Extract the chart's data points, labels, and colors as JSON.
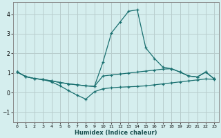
{
  "xlabel": "Humidex (Indice chaleur)",
  "background_color": "#d5eeee",
  "grid_color": "#b8cccc",
  "line_color": "#1a7070",
  "xlim": [
    -0.5,
    23.5
  ],
  "ylim": [
    -1.5,
    4.6
  ],
  "yticks": [
    -1,
    0,
    1,
    2,
    3,
    4
  ],
  "xticks": [
    0,
    1,
    2,
    3,
    4,
    5,
    6,
    7,
    8,
    9,
    10,
    11,
    12,
    13,
    14,
    15,
    16,
    17,
    18,
    19,
    20,
    21,
    22,
    23
  ],
  "series1_x": [
    0,
    1,
    2,
    3,
    4,
    5,
    6,
    7,
    8,
    9,
    10,
    11,
    12,
    13,
    14,
    15,
    16,
    17,
    18,
    19,
    20,
    21,
    22,
    23
  ],
  "series1_y": [
    1.05,
    0.82,
    0.72,
    0.67,
    0.6,
    0.52,
    0.45,
    0.4,
    0.35,
    0.32,
    0.85,
    0.9,
    0.95,
    1.0,
    1.05,
    1.1,
    1.15,
    1.2,
    1.22,
    1.05,
    0.85,
    0.8,
    1.05,
    0.7
  ],
  "series2_x": [
    0,
    1,
    2,
    3,
    4,
    5,
    6,
    7,
    8,
    9,
    10,
    11,
    12,
    13,
    14,
    15,
    16,
    17,
    18,
    19,
    20,
    21,
    22,
    23
  ],
  "series2_y": [
    1.05,
    0.82,
    0.72,
    0.67,
    0.6,
    0.52,
    0.45,
    0.4,
    0.35,
    0.32,
    1.55,
    3.05,
    3.6,
    4.15,
    4.22,
    2.28,
    1.75,
    1.3,
    1.22,
    1.05,
    0.85,
    0.8,
    1.05,
    0.7
  ],
  "series3_x": [
    0,
    1,
    2,
    3,
    4,
    5,
    6,
    7,
    8,
    9,
    10,
    11,
    12,
    13,
    14,
    15,
    16,
    17,
    18,
    19,
    20,
    21,
    22,
    23
  ],
  "series3_y": [
    1.05,
    0.82,
    0.72,
    0.67,
    0.55,
    0.35,
    0.1,
    -0.13,
    -0.33,
    0.05,
    0.2,
    0.25,
    0.28,
    0.3,
    0.32,
    0.35,
    0.4,
    0.45,
    0.5,
    0.55,
    0.6,
    0.65,
    0.7,
    0.68
  ]
}
